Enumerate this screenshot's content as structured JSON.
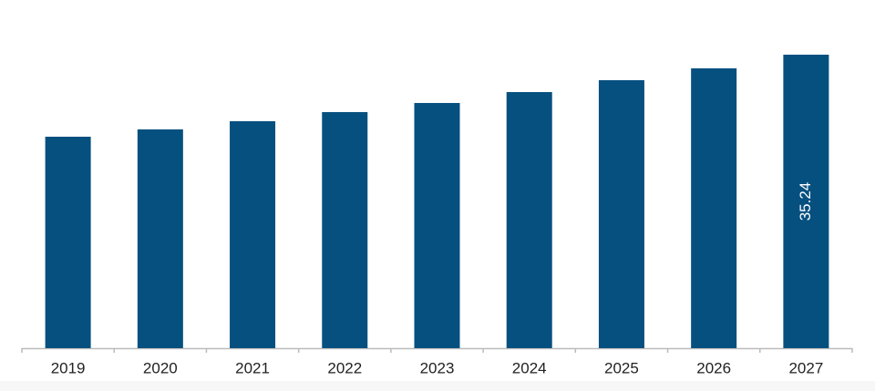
{
  "chart_data": {
    "type": "bar",
    "categories": [
      "2019",
      "2020",
      "2021",
      "2022",
      "2023",
      "2024",
      "2025",
      "2026",
      "2027"
    ],
    "values": [
      25.39,
      26.27,
      27.25,
      28.35,
      29.44,
      30.75,
      32.18,
      33.6,
      35.24
    ],
    "value_labels": [
      null,
      null,
      null,
      null,
      null,
      null,
      null,
      null,
      "35.24"
    ],
    "color": "#06507f"
  }
}
